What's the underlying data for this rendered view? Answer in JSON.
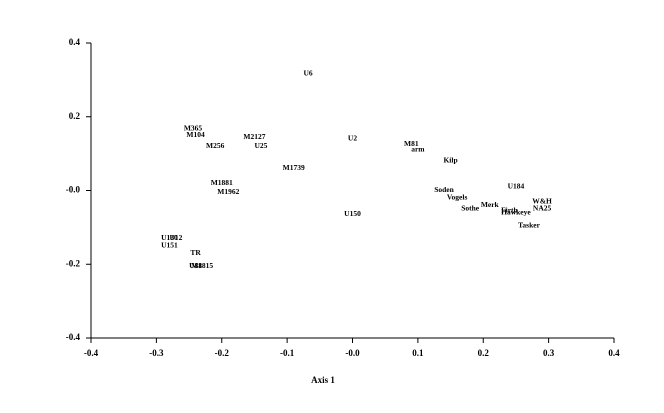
{
  "chart_data": {
    "type": "scatter",
    "xlabel": "Axis 1",
    "labels": [
      "U6",
      "M365",
      "M104",
      "M256",
      "M2127",
      "U25",
      "U2",
      "M81",
      "arm",
      "Kilp",
      "M1739",
      "M1881",
      "M1962",
      "Soden",
      "U184",
      "W&H",
      "Vogels",
      "NA25",
      "Merk",
      "Sothe",
      "Firth",
      "Hawkeye",
      "Tasker",
      "U150",
      "U130",
      "U12",
      "U151",
      "TR",
      "U88",
      "M1815"
    ],
    "x": [
      -0.068,
      -0.244,
      -0.24,
      -0.21,
      -0.15,
      -0.14,
      0.0,
      0.09,
      0.1,
      0.15,
      -0.09,
      -0.2,
      -0.19,
      0.14,
      0.25,
      0.29,
      0.16,
      0.29,
      0.21,
      0.18,
      0.24,
      0.25,
      0.27,
      0.0,
      -0.28,
      -0.27,
      -0.28,
      -0.24,
      -0.24,
      -0.23
    ],
    "values": [
      0.316,
      0.167,
      0.15,
      0.12,
      0.145,
      0.12,
      0.14,
      0.125,
      0.11,
      0.08,
      0.06,
      0.02,
      -0.005,
      0.0,
      0.01,
      -0.03,
      -0.02,
      -0.05,
      -0.04,
      -0.05,
      -0.055,
      -0.06,
      -0.095,
      -0.065,
      -0.13,
      -0.13,
      -0.15,
      -0.17,
      -0.205,
      -0.205
    ],
    "xlim": [
      -0.4,
      0.4
    ],
    "ylim": [
      -0.4,
      0.4
    ],
    "xticks": [
      -0.4,
      -0.3,
      -0.2,
      -0.1,
      {
        "value": 0,
        "label": "-0.0"
      },
      0.1,
      0.2,
      0.3,
      0.4
    ],
    "yticks": [
      -0.4,
      -0.2,
      {
        "value": 0,
        "label": "-0.0"
      },
      0.2,
      0.4
    ]
  }
}
